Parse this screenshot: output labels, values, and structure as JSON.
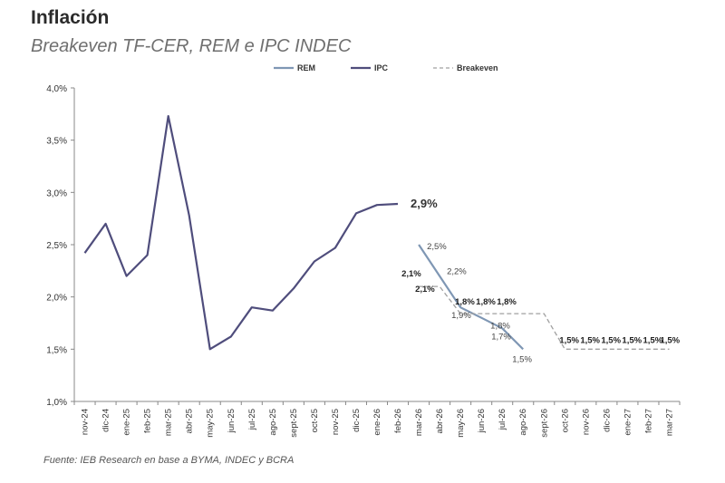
{
  "title": "Inflación",
  "subtitle": "Breakeven TF-CER, REM e IPC INDEC",
  "source": "Fuente: IEB Research en base a BYMA, INDEC y BCRA",
  "chart_data": {
    "type": "line",
    "title": "",
    "xlabel": "",
    "ylabel": "",
    "ylim": [
      1.0,
      4.0
    ],
    "yticks": [
      "1,0%",
      "1,5%",
      "2,0%",
      "2,5%",
      "3,0%",
      "3,5%",
      "4,0%"
    ],
    "categories": [
      "nov-24",
      "dic-24",
      "ene-25",
      "feb-25",
      "mar-25",
      "abr-25",
      "may-25",
      "jun-25",
      "jul-25",
      "ago-25",
      "sept-25",
      "oct-25",
      "nov-25",
      "dic-25",
      "ene-26",
      "feb-26",
      "mar-26",
      "abr-26",
      "may-26",
      "jun-26",
      "jul-26",
      "ago-26",
      "sept-26",
      "oct-26",
      "nov-26",
      "dic-26",
      "ene-27",
      "feb-27",
      "mar-27"
    ],
    "legend_position": "top",
    "grid": false,
    "series": [
      {
        "name": "REM",
        "color": "#7f97b4",
        "style": "solid",
        "points": [
          [
            "mar-26",
            2.5
          ],
          [
            "abr-26",
            2.2
          ],
          [
            "may-26",
            1.9
          ],
          [
            "jun-26",
            1.8
          ],
          [
            "jul-26",
            1.7
          ],
          [
            "ago-26",
            1.5
          ]
        ],
        "labels": [
          {
            "x": "mar-26",
            "y": 2.5,
            "text": "2,5%"
          },
          {
            "x": "abr-26",
            "y": 2.2,
            "text": "2,2%"
          },
          {
            "x": "may-26",
            "y": 1.9,
            "text": "1,9%"
          },
          {
            "x": "jun-26",
            "y": 1.8,
            "text": "1,8%"
          },
          {
            "x": "jul-26",
            "y": 1.7,
            "text": "1,7%"
          },
          {
            "x": "ago-26",
            "y": 1.5,
            "text": "1,5%"
          }
        ]
      },
      {
        "name": "IPC",
        "color": "#4f4d7c",
        "style": "solid",
        "points": [
          [
            "nov-24",
            2.42
          ],
          [
            "dic-24",
            2.7
          ],
          [
            "ene-25",
            2.2
          ],
          [
            "feb-25",
            2.4
          ],
          [
            "mar-25",
            3.73
          ],
          [
            "abr-25",
            2.78
          ],
          [
            "may-25",
            1.5
          ],
          [
            "jun-25",
            1.62
          ],
          [
            "jul-25",
            1.9
          ],
          [
            "ago-25",
            1.87
          ],
          [
            "sept-25",
            2.08
          ],
          [
            "oct-25",
            2.34
          ],
          [
            "nov-25",
            2.47
          ],
          [
            "dic-25",
            2.8
          ],
          [
            "ene-26",
            2.88
          ],
          [
            "feb-26",
            2.89
          ]
        ],
        "labels": [
          {
            "x": "feb-26",
            "y": 2.9,
            "text": "2,9%"
          }
        ]
      },
      {
        "name": "Breakeven",
        "color": "#a0a0a0",
        "style": "dashed",
        "points": [
          [
            "mar-26",
            2.1
          ],
          [
            "abr-26",
            2.1
          ],
          [
            "may-26",
            1.84
          ],
          [
            "jun-26",
            1.84
          ],
          [
            "jul-26",
            1.84
          ],
          [
            "ago-26",
            1.84
          ],
          [
            "sept-26",
            1.84
          ],
          [
            "oct-26",
            1.5
          ],
          [
            "nov-26",
            1.5
          ],
          [
            "dic-26",
            1.5
          ],
          [
            "ene-27",
            1.5
          ],
          [
            "feb-27",
            1.5
          ],
          [
            "mar-27",
            1.5
          ]
        ],
        "labels": [
          {
            "x": "mar-26",
            "y": 2.1,
            "text": "2,1%"
          },
          {
            "x": "abr-26",
            "y": 2.1,
            "text": "2,1%"
          },
          {
            "x": "may-26",
            "y": 1.84,
            "text": "1,8%"
          },
          {
            "x": "jun-26",
            "y": 1.84,
            "text": "1,8%"
          },
          {
            "x": "jul-26",
            "y": 1.84,
            "text": "1,8%"
          },
          {
            "x": "oct-26",
            "y": 1.5,
            "text": "1,5%"
          },
          {
            "x": "nov-26",
            "y": 1.5,
            "text": "1,5%"
          },
          {
            "x": "dic-26",
            "y": 1.5,
            "text": "1,5%"
          },
          {
            "x": "ene-27",
            "y": 1.5,
            "text": "1,5%"
          },
          {
            "x": "feb-27",
            "y": 1.5,
            "text": "1,5%"
          }
        ]
      }
    ]
  }
}
